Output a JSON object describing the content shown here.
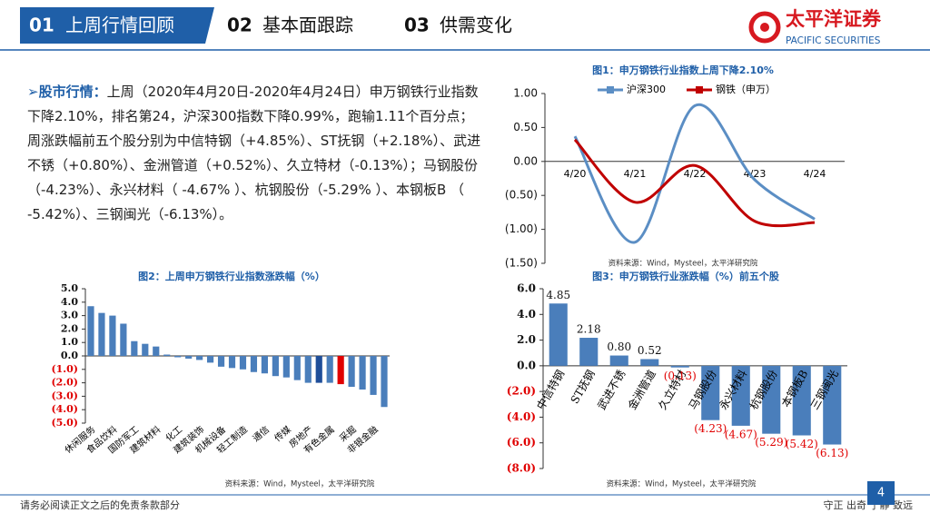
{
  "header": {
    "tabs": [
      {
        "num": "01",
        "label": "上周行情回顾"
      },
      {
        "num": "02",
        "label": "基本面跟踪"
      },
      {
        "num": "03",
        "label": "供需变化"
      }
    ],
    "logo": "太平洋证券",
    "logo_en": "PACIFIC SECURITIES"
  },
  "body": {
    "label": "股市行情：",
    "text": "上周（2020年4月20日-2020年4月24日）申万钢铁行业指数下降2.10%，排名第24，沪深300指数下降0.99%，跑输1.11个百分点；周涨跌幅前五个股分别为中信特钢（+4.85%）、ST抚钢（+2.18%）、武进不锈（+0.80%）、金洲管道（+0.52%）、久立特材（-0.13%）；马钢股份（-4.23%）、永兴材料（ -4.67% ）、杭钢股份（-5.29% ）、本钢板B （ -5.42%）、三钢闽光（-6.13%）。"
  },
  "footer": {
    "left": "请务必阅读正文之后的免责条款部分",
    "right": "守正 出奇 宁静 致远",
    "page": "4"
  },
  "chart_data": [
    {
      "type": "line",
      "title": "图1：申万钢铁行业指数上周下降2.10%",
      "categories": [
        "4/20",
        "4/21",
        "4/22",
        "4/23",
        "4/24"
      ],
      "series": [
        {
          "name": "沪深300",
          "color": "#5b8ec4",
          "values": [
            0.37,
            -1.19,
            0.82,
            -0.27,
            -0.85
          ]
        },
        {
          "name": "钢铁（申万）",
          "color": "#c00000",
          "values": [
            0.32,
            -0.6,
            -0.06,
            -0.88,
            -0.9
          ]
        }
      ],
      "ylim": [
        -1.5,
        1
      ],
      "yticks": [
        {
          "value": 1,
          "label": "1.00"
        },
        {
          "value": 0.5,
          "label": "0.50"
        },
        {
          "value": 0,
          "label": "0.00"
        },
        {
          "value": -0.5,
          "label": "(0.50)"
        },
        {
          "value": -1,
          "label": "(1.00)"
        },
        {
          "value": -1.5,
          "label": "(1.50)"
        }
      ],
      "source": "资料来源：Wind，Mysteel，太平洋研究院"
    },
    {
      "type": "bar",
      "title": "图2：上周申万钢铁行业指数涨跌幅（%）",
      "categories": [
        "休闲服务",
        null,
        "食品饮料",
        null,
        "国防军工",
        null,
        "建筑材料",
        null,
        "化工",
        null,
        "建筑装饰",
        null,
        "机械设备",
        null,
        "轻工制造",
        null,
        "通信",
        null,
        "传媒",
        null,
        "房地产",
        null,
        "有色金属",
        null,
        "采掘",
        null,
        "非银金融",
        null
      ],
      "values": [
        3.7,
        3.2,
        3.0,
        2.4,
        1.1,
        0.9,
        0.7,
        0.1,
        -0.1,
        -0.2,
        -0.3,
        -0.5,
        -0.8,
        -0.9,
        -1.0,
        -1.2,
        -1.3,
        -1.5,
        -1.6,
        -1.8,
        -2.0,
        -2.0,
        -2.0,
        -2.1,
        -2.3,
        -2.5,
        -2.9,
        -3.8
      ],
      "colors": [
        "#4a7ebb",
        "#4a7ebb",
        "#4a7ebb",
        "#4a7ebb",
        "#4a7ebb",
        "#4a7ebb",
        "#4a7ebb",
        "#4a7ebb",
        "#4a7ebb",
        "#4a7ebb",
        "#4a7ebb",
        "#4a7ebb",
        "#4a7ebb",
        "#4a7ebb",
        "#4a7ebb",
        "#4a7ebb",
        "#4a7ebb",
        "#4a7ebb",
        "#4a7ebb",
        "#4a7ebb",
        "#4a7ebb",
        "#1f4e99",
        "#4a7ebb",
        "#e00000",
        "#4a7ebb",
        "#4a7ebb",
        "#4a7ebb",
        "#4a7ebb"
      ],
      "ylim": [
        -5,
        5
      ],
      "yticks": [
        {
          "value": 5,
          "label": "5.0"
        },
        {
          "value": 4,
          "label": "4.0"
        },
        {
          "value": 3,
          "label": "3.0"
        },
        {
          "value": 2,
          "label": "2.0"
        },
        {
          "value": 1,
          "label": "1.0"
        },
        {
          "value": 0,
          "label": "0.0"
        },
        {
          "value": -1,
          "label": "(1.0)"
        },
        {
          "value": -2,
          "label": "(2.0)"
        },
        {
          "value": -3,
          "label": "(3.0)"
        },
        {
          "value": -4,
          "label": "(4.0)"
        },
        {
          "value": -5,
          "label": "(5.0)"
        }
      ],
      "negative_color": "#e00000",
      "source": "资料来源：Wind，Mysteel，太平洋研究院"
    },
    {
      "type": "bar",
      "title": "图3：申万钢铁行业涨跌幅（%）前五个股",
      "categories": [
        "中信特钢",
        "ST抚钢",
        "武进不锈",
        "金洲管道",
        "久立特材",
        "马钢股份",
        "永兴材料",
        "杭钢股份",
        "本钢板B",
        "三钢闽光"
      ],
      "values": [
        4.85,
        2.18,
        0.8,
        0.52,
        -0.13,
        -4.23,
        -4.67,
        -5.29,
        -5.42,
        -6.13
      ],
      "value_labels": [
        "4.85",
        "2.18",
        "0.80",
        "0.52",
        "(0.13)",
        "(4.23)",
        "(4.67)",
        "(5.29)",
        "(5.42)",
        "(6.13)"
      ],
      "color": "#4a7ebb",
      "ylim": [
        -8,
        6
      ],
      "yticks": [
        {
          "value": 6,
          "label": "6.0"
        },
        {
          "value": 4,
          "label": "4.0"
        },
        {
          "value": 2,
          "label": "2.0"
        },
        {
          "value": 0,
          "label": "0.0"
        },
        {
          "value": -2,
          "label": "(2.0)"
        },
        {
          "value": -4,
          "label": "(4.0)"
        },
        {
          "value": -6,
          "label": "(6.0)"
        },
        {
          "value": -8,
          "label": "(8.0)"
        }
      ],
      "negative_color": "#e00000",
      "source": "资料来源：Wind，Mysteel，太平洋研究院"
    }
  ]
}
